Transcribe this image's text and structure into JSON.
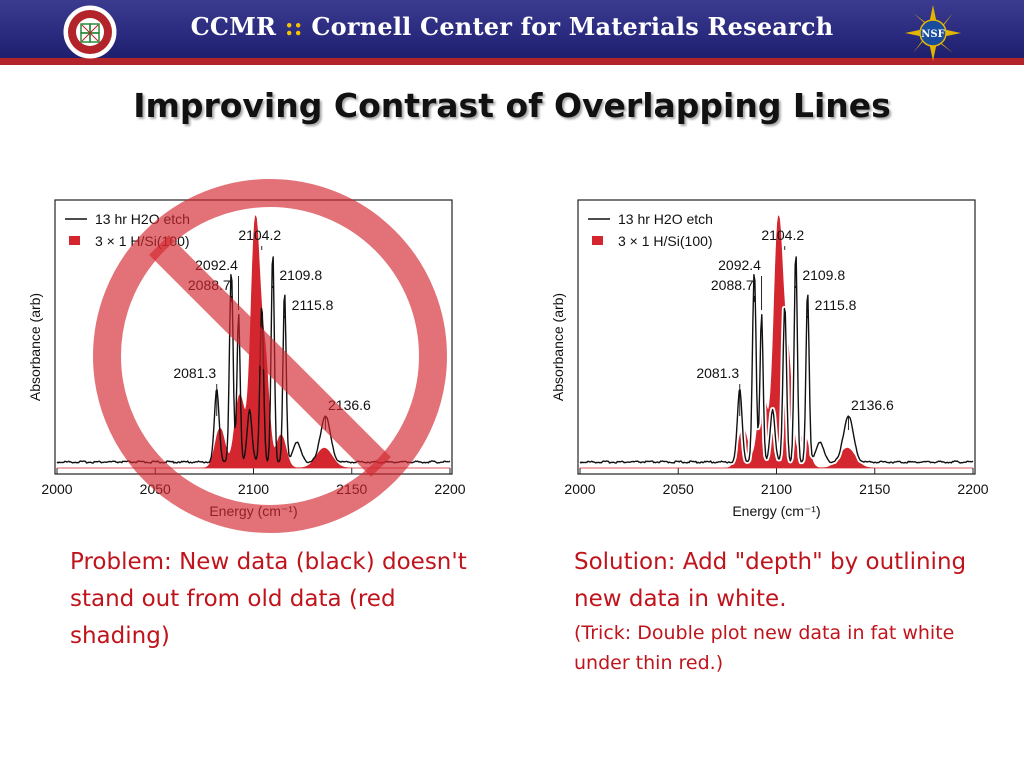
{
  "header": {
    "title_prefix": "CCMR",
    "title_sep": " :: ",
    "title_main": "Cornell Center for Materials Research",
    "logo_left_text": "CORNELL CENTER FOR MATERIALS RESEARCH",
    "logo_right_text": "NSF"
  },
  "slide": {
    "title": "Improving Contrast of Overlapping Lines"
  },
  "captions": {
    "left_problem": "Problem: New data (black) doesn't stand out from old data (red shading)",
    "right_solution": "Solution: Add \"depth\" by outlining new data in white.",
    "right_trick": "(Trick: Double plot new data in fat white under thin red.)"
  },
  "colors": {
    "banner": "#2b2b80",
    "stripe": "#b3232a",
    "red": "#d3262e",
    "caption": "#c0141c"
  },
  "chart_data": [
    {
      "type": "line",
      "name": "left",
      "xlabel": "Energy (cm⁻¹)",
      "ylabel": "Absorbance (arb)",
      "xlim": [
        2000,
        2200
      ],
      "x_ticks": [
        2000,
        2050,
        2100,
        2150,
        2200
      ],
      "x_tick_labels": [
        "2000",
        "2050",
        "2100",
        "2150",
        "2200"
      ],
      "white_outline": false,
      "legend": [
        "13 hr H2O etch",
        "3 × 1 H/Si(100)"
      ],
      "series": [
        {
          "name": "13 hr H2O etch",
          "style": "black-line"
        },
        {
          "name": "3 × 1 H/Si(100)",
          "style": "red-fill"
        }
      ],
      "peak_labels": [
        {
          "x": 2081.3,
          "label": "2081.3"
        },
        {
          "x": 2088.7,
          "label": "2088.7"
        },
        {
          "x": 2092.4,
          "label": "2092.4"
        },
        {
          "x": 2104.2,
          "label": "2104.2"
        },
        {
          "x": 2109.8,
          "label": "2109.8"
        },
        {
          "x": 2115.8,
          "label": "2115.8"
        },
        {
          "x": 2136.6,
          "label": "2136.6"
        }
      ]
    },
    {
      "type": "line",
      "name": "right",
      "xlabel": "Energy (cm⁻¹)",
      "ylabel": "Absorbance (arb)",
      "xlim": [
        2000,
        2200
      ],
      "x_ticks": [
        2000,
        2050,
        2100,
        2150,
        2200
      ],
      "x_tick_labels": [
        "2000",
        "2050",
        "2100",
        "2150",
        "2200"
      ],
      "white_outline": true,
      "legend": [
        "13 hr H2O etch",
        "3 × 1 H/Si(100)"
      ],
      "series": [
        {
          "name": "13 hr H2O etch",
          "style": "black-line"
        },
        {
          "name": "3 × 1 H/Si(100)",
          "style": "red-fill"
        }
      ],
      "peak_labels": [
        {
          "x": 2081.3,
          "label": "2081.3"
        },
        {
          "x": 2088.7,
          "label": "2088.7"
        },
        {
          "x": 2092.4,
          "label": "2092.4"
        },
        {
          "x": 2104.2,
          "label": "2104.2"
        },
        {
          "x": 2109.8,
          "label": "2109.8"
        },
        {
          "x": 2115.8,
          "label": "2115.8"
        },
        {
          "x": 2136.6,
          "label": "2136.6"
        }
      ]
    }
  ]
}
